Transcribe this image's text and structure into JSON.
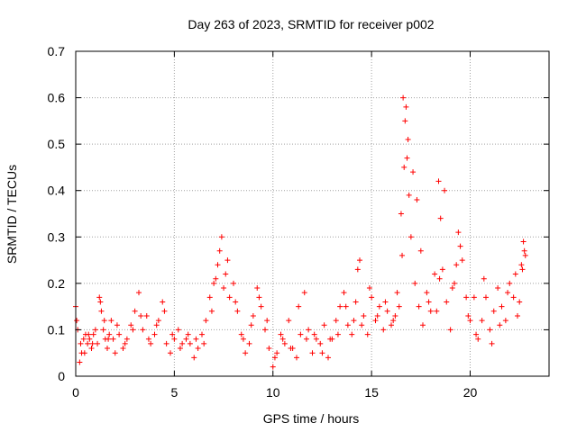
{
  "chart_data": {
    "type": "scatter",
    "title": "Day 263 of 2023, SRMTID for receiver p002",
    "xlabel": "GPS time / hours",
    "ylabel": "SRMTID / TECUs",
    "xlim": [
      0,
      24
    ],
    "ylim": [
      0,
      0.7
    ],
    "xticks": [
      0,
      5,
      10,
      15,
      20
    ],
    "yticks": [
      0,
      0.1,
      0.2,
      0.3,
      0.4,
      0.5,
      0.6,
      0.7
    ],
    "xtick_labels": [
      "0",
      "5",
      "10",
      "15",
      "20"
    ],
    "ytick_labels": [
      "0",
      "0.1",
      "0.2",
      "0.3",
      "0.4",
      "0.5",
      "0.6",
      "0.7"
    ],
    "grid": true,
    "marker": "plus",
    "color": "#ff0000",
    "series": [
      {
        "name": "SRMTID",
        "x": [
          0.0,
          0.1,
          0.2,
          0.3,
          0.4,
          0.5,
          0.6,
          0.7,
          0.8,
          0.9,
          1.0,
          1.1,
          1.2,
          1.3,
          1.4,
          1.5,
          1.6,
          1.7,
          1.8,
          1.9,
          2.0,
          2.2,
          2.4,
          2.6,
          2.8,
          3.0,
          3.2,
          3.4,
          3.6,
          3.8,
          4.0,
          4.2,
          4.4,
          4.6,
          4.8,
          5.0,
          5.2,
          5.4,
          5.6,
          5.8,
          6.0,
          6.2,
          6.4,
          6.6,
          6.8,
          7.0,
          7.2,
          7.4,
          7.6,
          7.8,
          8.0,
          8.2,
          8.4,
          8.6,
          8.8,
          9.0,
          9.2,
          9.4,
          9.6,
          9.8,
          10.0,
          10.2,
          10.4,
          10.6,
          10.8,
          11.0,
          11.2,
          11.4,
          11.6,
          11.8,
          12.0,
          12.2,
          12.4,
          12.6,
          12.8,
          13.0,
          13.2,
          13.4,
          13.6,
          13.8,
          14.0,
          14.2,
          14.4,
          14.6,
          14.8,
          15.0,
          15.2,
          15.4,
          15.6,
          15.8,
          16.0,
          16.2,
          16.4,
          16.5,
          16.6,
          16.7,
          16.8,
          16.9,
          17.0,
          17.2,
          17.4,
          17.6,
          17.8,
          18.0,
          18.2,
          18.4,
          18.5,
          18.6,
          18.8,
          19.0,
          19.2,
          19.4,
          19.6,
          19.8,
          20.0,
          20.2,
          20.4,
          20.6,
          20.8,
          21.0,
          21.2,
          21.4,
          21.6,
          21.8,
          22.0,
          22.2,
          22.4,
          22.6,
          22.7,
          22.8,
          0.05,
          0.25,
          0.45,
          0.65,
          0.85,
          1.25,
          1.45,
          1.65,
          2.1,
          2.5,
          2.9,
          3.3,
          3.7,
          4.1,
          4.5,
          4.9,
          5.3,
          5.7,
          6.1,
          6.5,
          6.9,
          7.1,
          7.3,
          7.5,
          7.7,
          8.1,
          8.5,
          8.9,
          9.3,
          9.7,
          10.1,
          10.5,
          10.9,
          11.3,
          11.7,
          12.1,
          12.5,
          12.9,
          13.3,
          13.7,
          14.1,
          14.3,
          14.5,
          14.9,
          15.3,
          15.7,
          16.1,
          16.3,
          16.55,
          16.65,
          16.75,
          16.85,
          17.1,
          17.3,
          17.5,
          17.9,
          18.3,
          18.45,
          18.7,
          19.1,
          19.3,
          19.5,
          19.9,
          20.3,
          20.7,
          21.1,
          21.5,
          21.9,
          22.3,
          22.5,
          22.65,
          22.75
        ],
        "y": [
          0.15,
          0.1,
          0.03,
          0.05,
          0.08,
          0.09,
          0.07,
          0.08,
          0.06,
          0.09,
          0.1,
          0.07,
          0.17,
          0.14,
          0.1,
          0.08,
          0.06,
          0.09,
          0.12,
          0.08,
          0.05,
          0.09,
          0.06,
          0.08,
          0.11,
          0.14,
          0.18,
          0.1,
          0.13,
          0.07,
          0.09,
          0.12,
          0.16,
          0.07,
          0.05,
          0.08,
          0.1,
          0.07,
          0.08,
          0.07,
          0.04,
          0.06,
          0.09,
          0.12,
          0.17,
          0.2,
          0.24,
          0.3,
          0.22,
          0.17,
          0.2,
          0.14,
          0.09,
          0.05,
          0.07,
          0.13,
          0.19,
          0.15,
          0.1,
          0.06,
          0.02,
          0.05,
          0.09,
          0.07,
          0.12,
          0.06,
          0.04,
          0.09,
          0.18,
          0.1,
          0.05,
          0.08,
          0.07,
          0.11,
          0.04,
          0.08,
          0.12,
          0.15,
          0.18,
          0.11,
          0.09,
          0.16,
          0.25,
          0.13,
          0.09,
          0.17,
          0.12,
          0.15,
          0.1,
          0.14,
          0.11,
          0.13,
          0.15,
          0.35,
          0.6,
          0.55,
          0.47,
          0.39,
          0.3,
          0.2,
          0.15,
          0.11,
          0.18,
          0.14,
          0.22,
          0.42,
          0.34,
          0.23,
          0.16,
          0.1,
          0.2,
          0.31,
          0.25,
          0.17,
          0.12,
          0.17,
          0.08,
          0.12,
          0.17,
          0.1,
          0.14,
          0.19,
          0.15,
          0.12,
          0.2,
          0.17,
          0.13,
          0.24,
          0.29,
          0.26,
          0.12,
          0.07,
          0.05,
          0.09,
          0.07,
          0.16,
          0.12,
          0.08,
          0.11,
          0.07,
          0.1,
          0.13,
          0.08,
          0.11,
          0.14,
          0.09,
          0.06,
          0.09,
          0.08,
          0.07,
          0.14,
          0.21,
          0.27,
          0.19,
          0.25,
          0.16,
          0.08,
          0.11,
          0.17,
          0.12,
          0.04,
          0.08,
          0.06,
          0.15,
          0.08,
          0.09,
          0.05,
          0.08,
          0.09,
          0.15,
          0.12,
          0.23,
          0.11,
          0.19,
          0.13,
          0.16,
          0.12,
          0.18,
          0.26,
          0.45,
          0.58,
          0.51,
          0.44,
          0.38,
          0.27,
          0.16,
          0.14,
          0.21,
          0.4,
          0.19,
          0.24,
          0.28,
          0.13,
          0.09,
          0.21,
          0.07,
          0.11,
          0.18,
          0.22,
          0.16,
          0.23,
          0.27
        ]
      }
    ]
  }
}
